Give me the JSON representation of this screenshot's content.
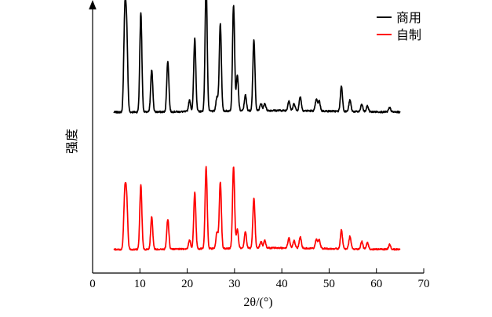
{
  "chart_data": {
    "type": "line",
    "title": "",
    "xlabel": "2θ/(°)",
    "ylabel": "强度",
    "xlim": [
      0,
      70
    ],
    "x_ticks": [
      0,
      10,
      20,
      30,
      40,
      50,
      60,
      70
    ],
    "grid": false,
    "legend_position": "top-right",
    "series": [
      {
        "name": "商用",
        "color": "#000000",
        "baseline": 0.11,
        "peaks": [
          [
            6.8,
            0.65
          ],
          [
            7.2,
            0.55
          ],
          [
            10.2,
            0.7
          ],
          [
            12.5,
            0.3
          ],
          [
            15.9,
            0.36
          ],
          [
            20.5,
            0.08
          ],
          [
            21.6,
            0.52
          ],
          [
            24.0,
            0.91
          ],
          [
            26.3,
            0.1
          ],
          [
            27.0,
            0.62
          ],
          [
            29.8,
            0.75
          ],
          [
            30.6,
            0.25
          ],
          [
            32.3,
            0.11
          ],
          [
            34.1,
            0.5
          ],
          [
            35.6,
            0.05
          ],
          [
            36.4,
            0.05
          ],
          [
            41.5,
            0.07
          ],
          [
            42.6,
            0.05
          ],
          [
            43.9,
            0.1
          ],
          [
            47.3,
            0.08
          ],
          [
            47.9,
            0.07
          ],
          [
            52.6,
            0.18
          ],
          [
            54.4,
            0.08
          ],
          [
            56.9,
            0.05
          ],
          [
            58.1,
            0.04
          ],
          [
            62.8,
            0.03
          ]
        ]
      },
      {
        "name": "自制",
        "color": "#ff0000",
        "baseline": 0.0,
        "peaks": [
          [
            6.8,
            0.42
          ],
          [
            7.2,
            0.38
          ],
          [
            10.2,
            0.51
          ],
          [
            12.5,
            0.26
          ],
          [
            15.9,
            0.24
          ],
          [
            20.5,
            0.07
          ],
          [
            21.6,
            0.45
          ],
          [
            24.0,
            0.65
          ],
          [
            26.3,
            0.13
          ],
          [
            27.0,
            0.53
          ],
          [
            29.8,
            0.65
          ],
          [
            30.6,
            0.15
          ],
          [
            32.3,
            0.13
          ],
          [
            34.1,
            0.4
          ],
          [
            35.6,
            0.05
          ],
          [
            36.4,
            0.06
          ],
          [
            41.5,
            0.08
          ],
          [
            42.6,
            0.06
          ],
          [
            43.9,
            0.09
          ],
          [
            47.3,
            0.07
          ],
          [
            47.9,
            0.07
          ],
          [
            52.6,
            0.15
          ],
          [
            54.4,
            0.1
          ],
          [
            56.9,
            0.06
          ],
          [
            58.1,
            0.05
          ],
          [
            62.8,
            0.04
          ]
        ]
      }
    ]
  }
}
